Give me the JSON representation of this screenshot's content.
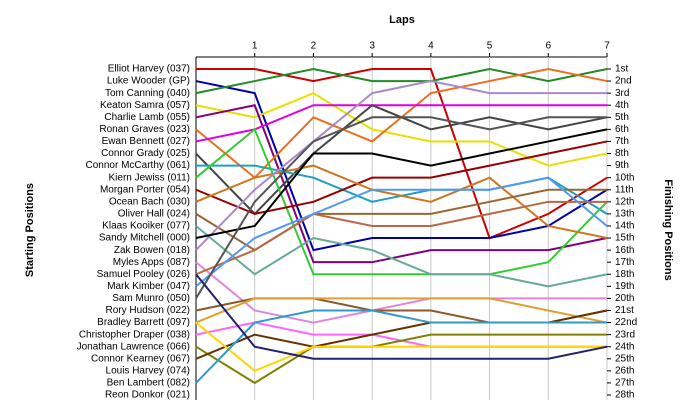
{
  "chart_data": {
    "type": "bump",
    "title": "Laps",
    "y_label_left": "Starting Positions",
    "y_label_right": "Finishing Positions",
    "x": [
      0,
      1,
      2,
      3,
      4,
      5,
      6,
      7
    ],
    "xlim": [
      0,
      7
    ],
    "xticks": [
      1,
      2,
      3,
      4,
      5,
      6,
      7
    ],
    "ylim": [
      1,
      28
    ],
    "finishing_labels": [
      "1st",
      "2nd",
      "3rd",
      "4th",
      "5th",
      "6th",
      "7th",
      "8th",
      "9th",
      "10th",
      "11th",
      "12th",
      "13th",
      "14th",
      "15th",
      "16th",
      "17th",
      "18th",
      "19th",
      "20th",
      "21st",
      "22nd",
      "23rd",
      "24th",
      "25th",
      "26th",
      "27th",
      "28th"
    ],
    "grid": true,
    "series": [
      {
        "name": "Elliot Harvey (037)",
        "color": "#cc0000",
        "values": [
          1,
          1,
          2,
          1,
          1,
          15,
          13,
          10
        ]
      },
      {
        "name": "Luke Wooder (GP)",
        "color": "#0000aa",
        "values": [
          2,
          3,
          16,
          15,
          15,
          15,
          14,
          11
        ]
      },
      {
        "name": "Tom Canning (040)",
        "color": "#228b22",
        "values": [
          3,
          2,
          1,
          2,
          2,
          1,
          2,
          1
        ]
      },
      {
        "name": "Keaton Samra (057)",
        "color": "#e8e000",
        "values": [
          4,
          5,
          3,
          6,
          7,
          7,
          9,
          8
        ]
      },
      {
        "name": "Charlie Lamb (055)",
        "color": "#800080",
        "values": [
          5,
          4,
          17,
          17,
          16,
          16,
          16,
          15
        ]
      },
      {
        "name": "Ronan Graves (023)",
        "color": "#e87020",
        "values": [
          6,
          10,
          5,
          7,
          3,
          2,
          1,
          2
        ]
      },
      {
        "name": "Ewan Bennett (027)",
        "color": "#e000e0",
        "values": [
          7,
          6,
          4,
          4,
          4,
          4,
          4,
          4
        ]
      },
      {
        "name": "Connor Grady (025)",
        "color": "#444444",
        "values": [
          8,
          13,
          8,
          4,
          6,
          5,
          6,
          5
        ]
      },
      {
        "name": "Connor McCarthy (061)",
        "color": "#20a0c0",
        "values": [
          9,
          9,
          10,
          12,
          11,
          11,
          10,
          13
        ]
      },
      {
        "name": "Kiern Jewiss (011)",
        "color": "#33cc33",
        "values": [
          10,
          6,
          18,
          18,
          18,
          18,
          17,
          12
        ]
      },
      {
        "name": "Morgan Porter (054)",
        "color": "#990000",
        "values": [
          11,
          13,
          12,
          10,
          10,
          9,
          8,
          7
        ]
      },
      {
        "name": "Ocean Bach (030)",
        "color": "#cc7722",
        "values": [
          12,
          10,
          9,
          11,
          12,
          10,
          14,
          15
        ]
      },
      {
        "name": "Oliver Hall (024)",
        "color": "#996633",
        "values": [
          13,
          16,
          13,
          13,
          13,
          12,
          11,
          11
        ]
      },
      {
        "name": "Klaas Kooiker (077)",
        "color": "#66aa99",
        "values": [
          14,
          18,
          15,
          16,
          18,
          18,
          19,
          18
        ]
      },
      {
        "name": "Sandy Mitchell (000)",
        "color": "#aa88cc",
        "values": [
          16,
          11,
          7,
          3,
          2,
          3,
          3,
          3
        ]
      },
      {
        "name": "Zak Bowen (018)",
        "color": "#000000",
        "values": [
          15,
          14,
          8,
          8,
          9,
          8,
          7,
          6
        ]
      },
      {
        "name": "Myles Apps (087)",
        "color": "#dd88dd",
        "values": [
          17,
          21,
          22,
          21,
          20,
          20,
          20,
          20
        ]
      },
      {
        "name": "Samuel Pooley (026)",
        "color": "#bb6644",
        "values": [
          18,
          16,
          13,
          14,
          14,
          13,
          12,
          12
        ]
      },
      {
        "name": "Mark Kimber (047)",
        "color": "#5599ee",
        "values": [
          19,
          15,
          13,
          11,
          11,
          11,
          10,
          14
        ]
      },
      {
        "name": "Sam Munro (050)",
        "color": "#555555",
        "values": [
          20,
          12,
          7,
          5,
          5,
          6,
          5,
          5
        ]
      },
      {
        "name": "Rory Hudson (022)",
        "color": "#8b5a2b",
        "values": [
          21,
          20,
          20,
          21,
          21,
          22,
          22,
          21
        ]
      },
      {
        "name": "Bradley Barrett (097)",
        "color": "#e0a030",
        "values": [
          22,
          20,
          20,
          20,
          20,
          20,
          21,
          22
        ]
      },
      {
        "name": "Christopher Draper (038)",
        "color": "#ff66ff",
        "values": [
          23,
          22,
          23,
          23,
          24,
          24,
          24,
          24
        ]
      },
      {
        "name": "Jonathan Lawrence (066)",
        "color": "#808000",
        "values": [
          24,
          27,
          24,
          24,
          23,
          23,
          23,
          23
        ]
      },
      {
        "name": "Connor Kearney (067)",
        "color": "#663300",
        "values": [
          25,
          23,
          24,
          23,
          22,
          22,
          22,
          21
        ]
      },
      {
        "name": "Louis Harvey (074)",
        "color": "#ffd700",
        "values": [
          22,
          26,
          24,
          24,
          24,
          24,
          24,
          24
        ]
      },
      {
        "name": "Ben Lambert (082)",
        "color": "#3399cc",
        "values": [
          27,
          22,
          21,
          21,
          22,
          22,
          22,
          22
        ]
      },
      {
        "name": "Reon Donkor (021)",
        "color": "#222266",
        "values": [
          18,
          24,
          25,
          25,
          25,
          25,
          25,
          24
        ]
      }
    ]
  }
}
